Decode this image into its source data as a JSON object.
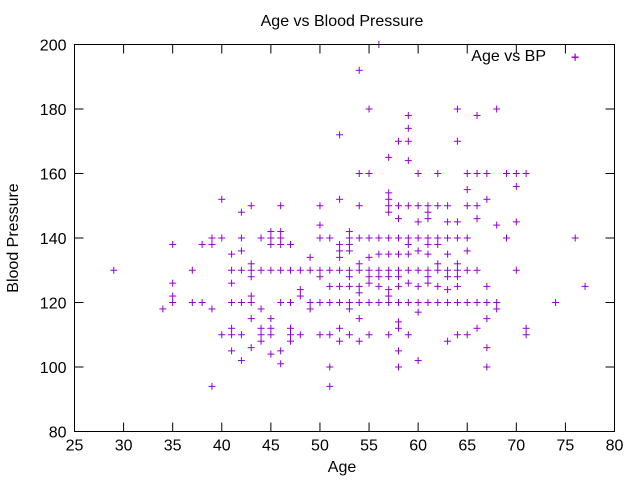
{
  "chart_data": {
    "type": "scatter",
    "title": "Age vs Blood Pressure",
    "xlabel": "Age",
    "ylabel": "Blood Pressure",
    "xlim": [
      25,
      80
    ],
    "ylim": [
      80,
      200
    ],
    "xticks": [
      25,
      30,
      35,
      40,
      45,
      50,
      55,
      60,
      65,
      70,
      75,
      80
    ],
    "yticks": [
      80,
      100,
      120,
      140,
      160,
      180,
      200
    ],
    "grid": false,
    "legend": {
      "position": "top-right",
      "entries": [
        "Age vs BP"
      ]
    },
    "marker": "plus",
    "series": [
      {
        "name": "Age vs BP",
        "color": "#9400D3",
        "points": [
          [
            29,
            130
          ],
          [
            34,
            118
          ],
          [
            35,
            138
          ],
          [
            35,
            126
          ],
          [
            35,
            122
          ],
          [
            35,
            120
          ],
          [
            37,
            130
          ],
          [
            37,
            120
          ],
          [
            38,
            138
          ],
          [
            38,
            120
          ],
          [
            39,
            140
          ],
          [
            39,
            138
          ],
          [
            39,
            118
          ],
          [
            39,
            94
          ],
          [
            40,
            152
          ],
          [
            40,
            140
          ],
          [
            40,
            110
          ],
          [
            41,
            135
          ],
          [
            41,
            130
          ],
          [
            41,
            126
          ],
          [
            41,
            120
          ],
          [
            41,
            112
          ],
          [
            41,
            110
          ],
          [
            41,
            105
          ],
          [
            42,
            148
          ],
          [
            42,
            140
          ],
          [
            42,
            136
          ],
          [
            42,
            130
          ],
          [
            42,
            120
          ],
          [
            42,
            110
          ],
          [
            42,
            102
          ],
          [
            43,
            150
          ],
          [
            43,
            132
          ],
          [
            43,
            130
          ],
          [
            43,
            128
          ],
          [
            43,
            122
          ],
          [
            43,
            120
          ],
          [
            43,
            115
          ],
          [
            43,
            106
          ],
          [
            44,
            140
          ],
          [
            44,
            130
          ],
          [
            44,
            118
          ],
          [
            44,
            112
          ],
          [
            44,
            110
          ],
          [
            44,
            108
          ],
          [
            45,
            142
          ],
          [
            45,
            140
          ],
          [
            45,
            138
          ],
          [
            45,
            130
          ],
          [
            45,
            115
          ],
          [
            45,
            112
          ],
          [
            45,
            110
          ],
          [
            45,
            104
          ],
          [
            46,
            150
          ],
          [
            46,
            142
          ],
          [
            46,
            140
          ],
          [
            46,
            138
          ],
          [
            46,
            130
          ],
          [
            46,
            120
          ],
          [
            46,
            105
          ],
          [
            46,
            101
          ],
          [
            47,
            138
          ],
          [
            47,
            130
          ],
          [
            47,
            120
          ],
          [
            47,
            112
          ],
          [
            47,
            110
          ],
          [
            47,
            108
          ],
          [
            48,
            130
          ],
          [
            48,
            124
          ],
          [
            48,
            122
          ],
          [
            48,
            110
          ],
          [
            49,
            134
          ],
          [
            49,
            130
          ],
          [
            49,
            120
          ],
          [
            49,
            118
          ],
          [
            50,
            150
          ],
          [
            50,
            144
          ],
          [
            50,
            140
          ],
          [
            50,
            130
          ],
          [
            50,
            128
          ],
          [
            50,
            120
          ],
          [
            50,
            110
          ],
          [
            51,
            140
          ],
          [
            51,
            130
          ],
          [
            51,
            125
          ],
          [
            51,
            120
          ],
          [
            51,
            110
          ],
          [
            51,
            100
          ],
          [
            51,
            94
          ],
          [
            52,
            172
          ],
          [
            52,
            152
          ],
          [
            52,
            138
          ],
          [
            52,
            136
          ],
          [
            52,
            134
          ],
          [
            52,
            130
          ],
          [
            52,
            125
          ],
          [
            52,
            120
          ],
          [
            52,
            112
          ],
          [
            52,
            108
          ],
          [
            53,
            142
          ],
          [
            53,
            140
          ],
          [
            53,
            138
          ],
          [
            53,
            136
          ],
          [
            53,
            130
          ],
          [
            53,
            128
          ],
          [
            53,
            125
          ],
          [
            53,
            120
          ],
          [
            53,
            118
          ],
          [
            53,
            110
          ],
          [
            54,
            192
          ],
          [
            54,
            160
          ],
          [
            54,
            150
          ],
          [
            54,
            140
          ],
          [
            54,
            132
          ],
          [
            54,
            130
          ],
          [
            54,
            125
          ],
          [
            54,
            123
          ],
          [
            54,
            120
          ],
          [
            54,
            115
          ],
          [
            54,
            108
          ],
          [
            55,
            180
          ],
          [
            55,
            160
          ],
          [
            55,
            140
          ],
          [
            55,
            134
          ],
          [
            55,
            130
          ],
          [
            55,
            128
          ],
          [
            55,
            126
          ],
          [
            55,
            120
          ],
          [
            55,
            110
          ],
          [
            56,
            200
          ],
          [
            56,
            140
          ],
          [
            56,
            135
          ],
          [
            56,
            130
          ],
          [
            56,
            128
          ],
          [
            56,
            125
          ],
          [
            56,
            120
          ],
          [
            57,
            165
          ],
          [
            57,
            154
          ],
          [
            57,
            152
          ],
          [
            57,
            150
          ],
          [
            57,
            148
          ],
          [
            57,
            140
          ],
          [
            57,
            135
          ],
          [
            57,
            130
          ],
          [
            57,
            128
          ],
          [
            57,
            124
          ],
          [
            57,
            122
          ],
          [
            57,
            120
          ],
          [
            57,
            110
          ],
          [
            58,
            170
          ],
          [
            58,
            150
          ],
          [
            58,
            146
          ],
          [
            58,
            140
          ],
          [
            58,
            135
          ],
          [
            58,
            130
          ],
          [
            58,
            128
          ],
          [
            58,
            125
          ],
          [
            58,
            120
          ],
          [
            58,
            114
          ],
          [
            58,
            112
          ],
          [
            58,
            105
          ],
          [
            58,
            100
          ],
          [
            59,
            178
          ],
          [
            59,
            174
          ],
          [
            59,
            170
          ],
          [
            59,
            164
          ],
          [
            59,
            150
          ],
          [
            59,
            140
          ],
          [
            59,
            138
          ],
          [
            59,
            135
          ],
          [
            59,
            130
          ],
          [
            59,
            126
          ],
          [
            59,
            120
          ],
          [
            59,
            110
          ],
          [
            60,
            160
          ],
          [
            60,
            150
          ],
          [
            60,
            145
          ],
          [
            60,
            140
          ],
          [
            60,
            136
          ],
          [
            60,
            130
          ],
          [
            60,
            125
          ],
          [
            60,
            120
          ],
          [
            60,
            117
          ],
          [
            60,
            102
          ],
          [
            61,
            150
          ],
          [
            61,
            148
          ],
          [
            61,
            146
          ],
          [
            61,
            140
          ],
          [
            61,
            138
          ],
          [
            61,
            135
          ],
          [
            61,
            130
          ],
          [
            61,
            128
          ],
          [
            61,
            126
          ],
          [
            61,
            120
          ],
          [
            62,
            160
          ],
          [
            62,
            150
          ],
          [
            62,
            140
          ],
          [
            62,
            138
          ],
          [
            62,
            132
          ],
          [
            62,
            130
          ],
          [
            62,
            125
          ],
          [
            62,
            120
          ],
          [
            63,
            150
          ],
          [
            63,
            145
          ],
          [
            63,
            140
          ],
          [
            63,
            135
          ],
          [
            63,
            130
          ],
          [
            63,
            128
          ],
          [
            63,
            124
          ],
          [
            63,
            120
          ],
          [
            63,
            108
          ],
          [
            64,
            180
          ],
          [
            64,
            170
          ],
          [
            64,
            145
          ],
          [
            64,
            140
          ],
          [
            64,
            132
          ],
          [
            64,
            130
          ],
          [
            64,
            128
          ],
          [
            64,
            125
          ],
          [
            64,
            120
          ],
          [
            64,
            110
          ],
          [
            65,
            160
          ],
          [
            65,
            155
          ],
          [
            65,
            150
          ],
          [
            65,
            140
          ],
          [
            65,
            136
          ],
          [
            65,
            130
          ],
          [
            65,
            120
          ],
          [
            65,
            110
          ],
          [
            66,
            178
          ],
          [
            66,
            160
          ],
          [
            66,
            150
          ],
          [
            66,
            146
          ],
          [
            66,
            130
          ],
          [
            66,
            120
          ],
          [
            66,
            112
          ],
          [
            67,
            160
          ],
          [
            67,
            152
          ],
          [
            67,
            125
          ],
          [
            67,
            120
          ],
          [
            67,
            115
          ],
          [
            67,
            106
          ],
          [
            67,
            100
          ],
          [
            68,
            180
          ],
          [
            68,
            144
          ],
          [
            68,
            120
          ],
          [
            68,
            118
          ],
          [
            69,
            160
          ],
          [
            69,
            140
          ],
          [
            70,
            160
          ],
          [
            70,
            156
          ],
          [
            70,
            145
          ],
          [
            70,
            130
          ],
          [
            71,
            160
          ],
          [
            71,
            112
          ],
          [
            71,
            110
          ],
          [
            74,
            120
          ],
          [
            76,
            196
          ],
          [
            76,
            140
          ],
          [
            77,
            125
          ]
        ]
      }
    ]
  }
}
